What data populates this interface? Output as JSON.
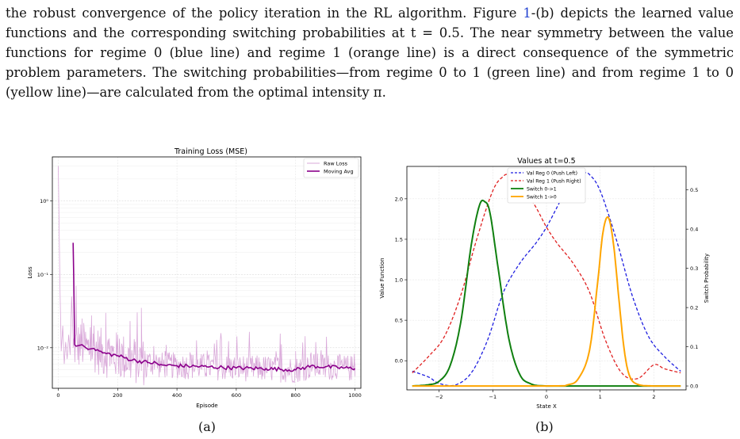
{
  "paragraph": {
    "p1": "the robust convergence of the policy iteration in the RL algorithm. Figure ",
    "ref": "1",
    "p2": "-(b) depicts the learned value functions and the corresponding switching probabilities at t = 0.5. The near symmetry between the value functions for regime 0 (blue line) and regime 1 (orange line) is a direct consequence of the symmetric problem parameters. The switching probabilities—from regime 0 to 1 (green line) and from regime 1 to 0 (yellow line)—are calculated from the optimal intensity π."
  },
  "captions": {
    "a": "(a)",
    "b": "(b)"
  },
  "colors": {
    "raw": "#d9a8d9",
    "avg": "#8b008b",
    "blue": "#1f1fe0",
    "red": "#e02020",
    "green": "#108010",
    "orange": "#ffa500"
  },
  "chart_data": [
    {
      "type": "line",
      "title": "Training Loss (MSE)",
      "xlabel": "Episode",
      "ylabel": "Loss",
      "yscale": "log",
      "xlim": [
        -20,
        1020
      ],
      "ylim": [
        0.0028,
        4.0
      ],
      "xticks": [
        "0",
        "200",
        "400",
        "600",
        "800",
        "1000"
      ],
      "yticks": [
        "10⁰",
        "10⁻¹",
        "10⁻²"
      ],
      "legend_position": "top-right",
      "grid": true,
      "series": [
        {
          "name": "Raw Loss",
          "x": [
            0,
            3,
            6,
            10,
            15,
            20,
            25,
            30,
            35,
            40,
            45,
            50,
            60,
            70,
            80,
            100,
            120,
            140,
            160,
            180,
            200,
            240,
            280,
            320,
            360,
            400,
            450,
            500,
            600,
            700,
            800,
            900,
            1000
          ],
          "values": [
            3.0,
            0.4,
            0.06,
            0.009,
            0.02,
            0.006,
            0.012,
            0.007,
            0.015,
            0.008,
            0.05,
            0.01,
            0.07,
            0.008,
            0.025,
            0.009,
            0.02,
            0.007,
            0.03,
            0.006,
            0.015,
            0.006,
            0.035,
            0.006,
            0.009,
            0.005,
            0.008,
            0.005,
            0.007,
            0.005,
            0.009,
            0.004,
            0.006
          ]
        },
        {
          "name": "Moving Avg",
          "x": [
            50,
            52,
            55,
            60,
            80,
            100,
            120,
            150,
            200,
            250,
            300,
            330,
            340,
            400,
            500,
            600,
            700,
            800,
            850,
            900,
            1000
          ],
          "values": [
            0.27,
            0.1,
            0.011,
            0.0105,
            0.011,
            0.0095,
            0.0098,
            0.0085,
            0.0078,
            0.0068,
            0.0063,
            0.0062,
            0.0058,
            0.0057,
            0.0055,
            0.0053,
            0.0052,
            0.005,
            0.0056,
            0.0055,
            0.0052
          ]
        }
      ]
    },
    {
      "type": "line",
      "title": "Values at t=0.5",
      "xlabel": "State X",
      "ylabel": "Value Function",
      "y2label": "Switch Probability",
      "xlim": [
        -2.6,
        2.6
      ],
      "ylim": [
        -0.36,
        2.4
      ],
      "y2lim": [
        -0.01,
        0.56
      ],
      "xticks": [
        -2,
        -1,
        0,
        1,
        2
      ],
      "yticks": [
        0.0,
        0.5,
        1.0,
        1.5,
        2.0
      ],
      "y2ticks": [
        0.0,
        0.1,
        0.2,
        0.3,
        0.4,
        0.5
      ],
      "legend_position": "top-center",
      "grid": true,
      "series": [
        {
          "name": "Val Reg 0 (Push Left)",
          "axis": "left",
          "x": [
            -2.5,
            -2.2,
            -2.0,
            -1.7,
            -1.4,
            -1.1,
            -0.8,
            -0.5,
            -0.2,
            0.0,
            0.2,
            0.4,
            0.6,
            0.7,
            0.8,
            1.0,
            1.3,
            1.6,
            1.9,
            2.2,
            2.5
          ],
          "values": [
            -0.13,
            -0.2,
            -0.28,
            -0.3,
            -0.15,
            0.25,
            0.85,
            1.2,
            1.45,
            1.65,
            1.9,
            2.15,
            2.3,
            2.32,
            2.3,
            2.1,
            1.5,
            0.8,
            0.3,
            0.05,
            -0.13
          ]
        },
        {
          "name": "Val Reg 1 (Push Right)",
          "axis": "left",
          "x": [
            -2.5,
            -2.2,
            -1.9,
            -1.6,
            -1.3,
            -1.0,
            -0.8,
            -0.7,
            -0.6,
            -0.4,
            -0.2,
            0.0,
            0.2,
            0.5,
            0.8,
            1.1,
            1.4,
            1.7,
            2.0,
            2.2,
            2.5
          ],
          "values": [
            -0.15,
            0.05,
            0.3,
            0.8,
            1.5,
            2.1,
            2.28,
            2.3,
            2.28,
            2.1,
            1.9,
            1.65,
            1.45,
            1.2,
            0.85,
            0.25,
            -0.15,
            -0.22,
            -0.05,
            -0.1,
            -0.15
          ]
        },
        {
          "name": "Switch 0->1",
          "axis": "right",
          "x": [
            -2.5,
            -2.2,
            -2.0,
            -1.8,
            -1.6,
            -1.4,
            -1.25,
            -1.15,
            -1.05,
            -0.9,
            -0.7,
            -0.5,
            -0.3,
            0.0,
            1.0,
            2.5
          ],
          "values": [
            0.0,
            0.003,
            0.012,
            0.05,
            0.16,
            0.36,
            0.46,
            0.47,
            0.44,
            0.3,
            0.12,
            0.03,
            0.006,
            0.0,
            0.0,
            0.0
          ]
        },
        {
          "name": "Switch 1->0",
          "axis": "right",
          "x": [
            -2.5,
            0.0,
            0.4,
            0.6,
            0.8,
            0.95,
            1.05,
            1.15,
            1.25,
            1.35,
            1.45,
            1.55,
            1.7,
            2.0,
            2.5
          ],
          "values": [
            0.0,
            0.0,
            0.003,
            0.02,
            0.09,
            0.26,
            0.39,
            0.43,
            0.36,
            0.22,
            0.09,
            0.025,
            0.004,
            0.0,
            0.0
          ]
        }
      ]
    }
  ]
}
